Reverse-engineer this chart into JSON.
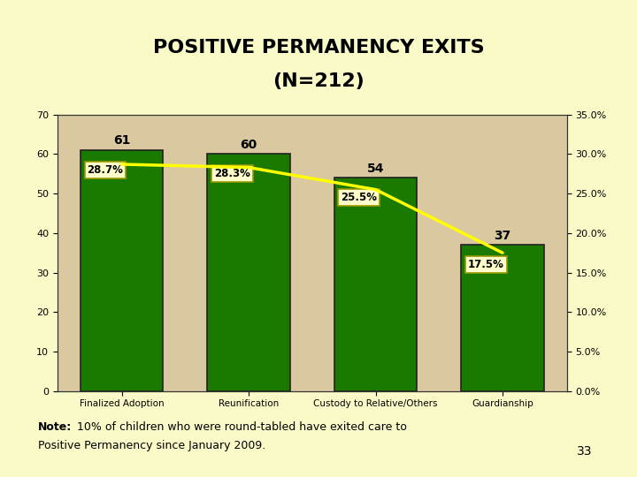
{
  "title_line1": "POSITIVE PERMANENCY EXITS",
  "title_line2": "(N=212)",
  "categories": [
    "Finalized Adoption",
    "Reunification",
    "Custody to Relative/Others",
    "Guardianship"
  ],
  "values": [
    61,
    60,
    54,
    37
  ],
  "percentages": [
    28.7,
    28.3,
    25.5,
    17.5
  ],
  "pct_labels": [
    "28.7%",
    "28.3%",
    "25.5%",
    "17.5%"
  ],
  "bar_color": "#1a7a00",
  "bar_edge_color": "#222222",
  "line_color": "#ffff00",
  "label_box_color": "#ffffcc",
  "label_box_edge": "#999900",
  "bg_color": "#fafac8",
  "plot_bg_color": "#d9c8a0",
  "ylim_left": [
    0,
    70
  ],
  "ylim_right": [
    0,
    35
  ],
  "yticks_left": [
    0,
    10,
    20,
    30,
    40,
    50,
    60,
    70
  ],
  "yticks_right": [
    0.0,
    5.0,
    10.0,
    15.0,
    20.0,
    25.0,
    30.0,
    35.0
  ],
  "note_bold": "Note:",
  "note_normal": "  10% of children who were round-tabled have exited care to\nPositive Permanency since January 2009.",
  "page_num": "33",
  "title_fontsize": 16,
  "bar_width": 0.65
}
